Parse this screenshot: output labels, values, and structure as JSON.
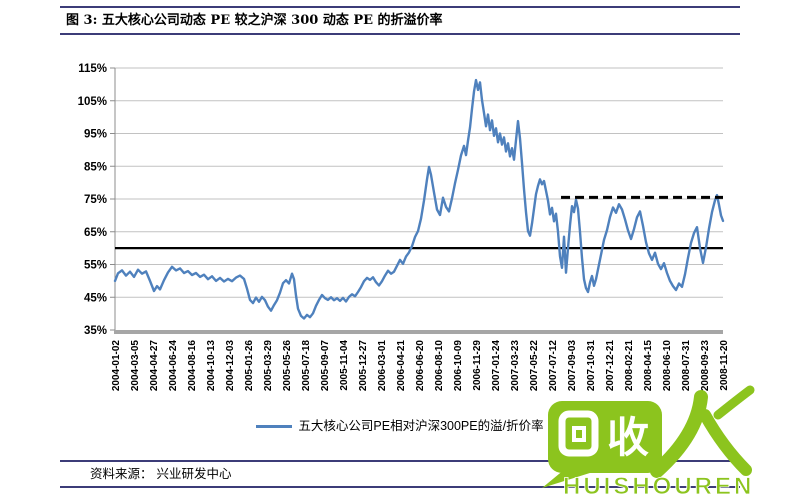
{
  "header": {
    "title": "图 3:  五大核心公司动态 PE 较之沪深 300 动态 PE 的折溢价率"
  },
  "footer": {
    "source": "资料来源：  兴业研发中心"
  },
  "watermark": {
    "bubble_text": "收",
    "person_char": "人",
    "caption": "HUISHOUREN",
    "color": "#8CC41E"
  },
  "colors": {
    "rule_navy": "#3C3C78",
    "grid": "#C2C2C2",
    "axis": "#A6A6A6",
    "series_blue": "#4F81BD",
    "ref_black": "#000000"
  },
  "chart_data": {
    "type": "line",
    "title": "五大核心公司动态PE较之沪深300动态PE的折溢价率",
    "xlabel": "",
    "ylabel": "",
    "ylim": [
      35,
      115
    ],
    "grid": true,
    "legend_position": "bottom",
    "yticks": [
      {
        "v": 35,
        "label": "35%"
      },
      {
        "v": 45,
        "label": "45%"
      },
      {
        "v": 55,
        "label": "55%"
      },
      {
        "v": 65,
        "label": "65%"
      },
      {
        "v": 75,
        "label": "75%"
      },
      {
        "v": 85,
        "label": "85%"
      },
      {
        "v": 95,
        "label": "95%"
      },
      {
        "v": 105,
        "label": "105%"
      },
      {
        "v": 115,
        "label": "115%"
      }
    ],
    "xtick_labels": [
      "2004-01-02",
      "2004-03-05",
      "2004-04-27",
      "2004-06-24",
      "2004-08-16",
      "2004-10-13",
      "2004-12-03",
      "2005-01-26",
      "2005-03-29",
      "2005-05-26",
      "2005-07-18",
      "2005-09-07",
      "2005-11-04",
      "2005-12-27",
      "2006-03-01",
      "2006-04-21",
      "2006-06-20",
      "2006-08-10",
      "2006-10-09",
      "2006-11-29",
      "2007-01-24",
      "2007-03-23",
      "2007-05-22",
      "2007-07-12",
      "2007-09-03",
      "2007-10-31",
      "2007-12-21",
      "2008-02-21",
      "2008-04-15",
      "2008-06-10",
      "2008-07-31",
      "2008-09-23",
      "2008-11-20"
    ],
    "reference_lines": [
      {
        "name": "average-line",
        "style": "solid",
        "color": "#000000",
        "value": 60,
        "from": 0,
        "to": 1,
        "width": 2.2
      },
      {
        "name": "recent-premium-line",
        "style": "dashed",
        "color": "#000000",
        "value": 75.5,
        "from": 0.7336,
        "to": 1,
        "width": 3
      }
    ],
    "series": [
      {
        "name": "五大核心公司PE相对沪深300PE的溢/折价率",
        "color": "#4F81BD",
        "points": [
          [
            0.0,
            50.0
          ],
          [
            0.0049,
            52.3
          ],
          [
            0.0115,
            53.2
          ],
          [
            0.0181,
            51.6
          ],
          [
            0.0247,
            52.8
          ],
          [
            0.0312,
            51.2
          ],
          [
            0.0378,
            53.4
          ],
          [
            0.0444,
            52.2
          ],
          [
            0.051,
            52.9
          ],
          [
            0.0576,
            50.0
          ],
          [
            0.0641,
            46.9
          ],
          [
            0.0691,
            48.4
          ],
          [
            0.074,
            47.4
          ],
          [
            0.0806,
            50.2
          ],
          [
            0.0872,
            52.6
          ],
          [
            0.0937,
            54.3
          ],
          [
            0.1003,
            53.2
          ],
          [
            0.1069,
            53.8
          ],
          [
            0.1135,
            52.4
          ],
          [
            0.1201,
            53.0
          ],
          [
            0.1266,
            51.8
          ],
          [
            0.1332,
            52.4
          ],
          [
            0.1398,
            51.2
          ],
          [
            0.1464,
            51.9
          ],
          [
            0.153,
            50.5
          ],
          [
            0.1595,
            51.4
          ],
          [
            0.1661,
            50.0
          ],
          [
            0.1727,
            50.9
          ],
          [
            0.1793,
            49.8
          ],
          [
            0.1859,
            50.6
          ],
          [
            0.1924,
            49.9
          ],
          [
            0.199,
            51.0
          ],
          [
            0.2056,
            51.6
          ],
          [
            0.2122,
            50.6
          ],
          [
            0.2171,
            47.6
          ],
          [
            0.222,
            44.2
          ],
          [
            0.227,
            43.2
          ],
          [
            0.2319,
            44.9
          ],
          [
            0.2368,
            43.6
          ],
          [
            0.2418,
            45.1
          ],
          [
            0.2467,
            44.1
          ],
          [
            0.2516,
            42.1
          ],
          [
            0.2566,
            40.9
          ],
          [
            0.2615,
            42.6
          ],
          [
            0.2664,
            44.1
          ],
          [
            0.2714,
            46.4
          ],
          [
            0.2763,
            49.3
          ],
          [
            0.2812,
            50.2
          ],
          [
            0.2862,
            49.2
          ],
          [
            0.2911,
            52.2
          ],
          [
            0.2944,
            50.5
          ],
          [
            0.2977,
            45.5
          ],
          [
            0.301,
            41.5
          ],
          [
            0.3059,
            39.3
          ],
          [
            0.3109,
            38.5
          ],
          [
            0.3158,
            39.6
          ],
          [
            0.3207,
            38.9
          ],
          [
            0.3257,
            40.1
          ],
          [
            0.3306,
            42.4
          ],
          [
            0.3355,
            44.2
          ],
          [
            0.3405,
            45.7
          ],
          [
            0.3454,
            44.7
          ],
          [
            0.3503,
            44.2
          ],
          [
            0.3553,
            45.0
          ],
          [
            0.3602,
            44.1
          ],
          [
            0.3651,
            44.7
          ],
          [
            0.3701,
            43.9
          ],
          [
            0.375,
            44.8
          ],
          [
            0.3799,
            43.7
          ],
          [
            0.3849,
            45.1
          ],
          [
            0.3898,
            45.9
          ],
          [
            0.3947,
            45.3
          ],
          [
            0.3997,
            46.6
          ],
          [
            0.4046,
            48.1
          ],
          [
            0.4095,
            49.9
          ],
          [
            0.4145,
            50.9
          ],
          [
            0.4194,
            50.3
          ],
          [
            0.4243,
            51.1
          ],
          [
            0.4293,
            49.6
          ],
          [
            0.4342,
            48.6
          ],
          [
            0.4391,
            49.9
          ],
          [
            0.4441,
            51.6
          ],
          [
            0.449,
            53.1
          ],
          [
            0.4539,
            52.2
          ],
          [
            0.4589,
            52.8
          ],
          [
            0.4638,
            54.6
          ],
          [
            0.4688,
            56.4
          ],
          [
            0.4737,
            55.2
          ],
          [
            0.4786,
            57.4
          ],
          [
            0.4836,
            58.7
          ],
          [
            0.4885,
            60.6
          ],
          [
            0.4934,
            63.4
          ],
          [
            0.4984,
            65.2
          ],
          [
            0.5033,
            69.0
          ],
          [
            0.5082,
            74.5
          ],
          [
            0.5132,
            81.0
          ],
          [
            0.5164,
            84.8
          ],
          [
            0.5197,
            82.4
          ],
          [
            0.5247,
            77.0
          ],
          [
            0.5296,
            71.8
          ],
          [
            0.5345,
            70.1
          ],
          [
            0.5395,
            75.4
          ],
          [
            0.5444,
            72.6
          ],
          [
            0.5493,
            71.2
          ],
          [
            0.5543,
            75.2
          ],
          [
            0.5592,
            79.8
          ],
          [
            0.5641,
            83.9
          ],
          [
            0.5691,
            88.3
          ],
          [
            0.574,
            91.2
          ],
          [
            0.5773,
            88.4
          ],
          [
            0.5806,
            92.8
          ],
          [
            0.5839,
            96.8
          ],
          [
            0.5872,
            102.5
          ],
          [
            0.5905,
            107.8
          ],
          [
            0.5938,
            111.3
          ],
          [
            0.597,
            108.3
          ],
          [
            0.6003,
            110.6
          ],
          [
            0.6036,
            105.2
          ],
          [
            0.6069,
            101.3
          ],
          [
            0.6102,
            97.2
          ],
          [
            0.6135,
            100.8
          ],
          [
            0.6168,
            96.0
          ],
          [
            0.6201,
            99.0
          ],
          [
            0.6234,
            94.3
          ],
          [
            0.6266,
            96.6
          ],
          [
            0.6299,
            92.3
          ],
          [
            0.6332,
            95.0
          ],
          [
            0.6365,
            91.6
          ],
          [
            0.6398,
            93.8
          ],
          [
            0.6431,
            89.5
          ],
          [
            0.6464,
            92.0
          ],
          [
            0.6497,
            88.0
          ],
          [
            0.653,
            90.5
          ],
          [
            0.6563,
            87.0
          ],
          [
            0.6595,
            93.0
          ],
          [
            0.6628,
            98.8
          ],
          [
            0.6661,
            93.5
          ],
          [
            0.6694,
            86.0
          ],
          [
            0.6727,
            78.0
          ],
          [
            0.676,
            71.0
          ],
          [
            0.6793,
            65.2
          ],
          [
            0.6826,
            63.8
          ],
          [
            0.6859,
            67.5
          ],
          [
            0.6891,
            72.0
          ],
          [
            0.6924,
            76.5
          ],
          [
            0.6957,
            79.0
          ],
          [
            0.699,
            81.0
          ],
          [
            0.7023,
            79.5
          ],
          [
            0.7056,
            80.5
          ],
          [
            0.7089,
            77.5
          ],
          [
            0.7122,
            74.5
          ],
          [
            0.7155,
            70.3
          ],
          [
            0.7188,
            72.3
          ],
          [
            0.722,
            68.2
          ],
          [
            0.7253,
            70.5
          ],
          [
            0.7286,
            65.0
          ],
          [
            0.7319,
            57.5
          ],
          [
            0.7352,
            54.0
          ],
          [
            0.7385,
            63.5
          ],
          [
            0.7418,
            52.5
          ],
          [
            0.7451,
            60.0
          ],
          [
            0.7484,
            67.0
          ],
          [
            0.7516,
            72.8
          ],
          [
            0.7549,
            71.0
          ],
          [
            0.7582,
            74.8
          ],
          [
            0.7615,
            72.0
          ],
          [
            0.7648,
            65.0
          ],
          [
            0.7681,
            57.0
          ],
          [
            0.7714,
            50.5
          ],
          [
            0.7747,
            47.8
          ],
          [
            0.778,
            46.6
          ],
          [
            0.7813,
            49.5
          ],
          [
            0.7845,
            51.5
          ],
          [
            0.7878,
            48.5
          ],
          [
            0.7911,
            50.5
          ],
          [
            0.7944,
            53.5
          ],
          [
            0.7993,
            58.0
          ],
          [
            0.8043,
            62.5
          ],
          [
            0.8092,
            65.5
          ],
          [
            0.8141,
            69.5
          ],
          [
            0.8191,
            72.4
          ],
          [
            0.824,
            70.8
          ],
          [
            0.8289,
            73.4
          ],
          [
            0.8339,
            71.8
          ],
          [
            0.8388,
            68.8
          ],
          [
            0.8438,
            65.4
          ],
          [
            0.8487,
            62.8
          ],
          [
            0.8536,
            65.8
          ],
          [
            0.8586,
            69.4
          ],
          [
            0.8635,
            71.2
          ],
          [
            0.8684,
            66.8
          ],
          [
            0.8734,
            61.8
          ],
          [
            0.8783,
            58.4
          ],
          [
            0.8832,
            56.4
          ],
          [
            0.8882,
            58.6
          ],
          [
            0.8931,
            55.2
          ],
          [
            0.898,
            53.6
          ],
          [
            0.903,
            55.4
          ],
          [
            0.9079,
            52.4
          ],
          [
            0.9128,
            50.0
          ],
          [
            0.9178,
            48.4
          ],
          [
            0.9227,
            47.2
          ],
          [
            0.9276,
            49.2
          ],
          [
            0.9326,
            48.2
          ],
          [
            0.9375,
            52.0
          ],
          [
            0.9424,
            57.0
          ],
          [
            0.9474,
            61.6
          ],
          [
            0.9523,
            64.6
          ],
          [
            0.9572,
            66.4
          ],
          [
            0.9622,
            60.0
          ],
          [
            0.9671,
            55.5
          ],
          [
            0.972,
            60.2
          ],
          [
            0.977,
            66.0
          ],
          [
            0.9819,
            71.0
          ],
          [
            0.9868,
            74.6
          ],
          [
            0.9901,
            76.2
          ],
          [
            0.9934,
            73.2
          ],
          [
            0.9967,
            70.0
          ],
          [
            1.0,
            68.3
          ]
        ]
      }
    ]
  }
}
